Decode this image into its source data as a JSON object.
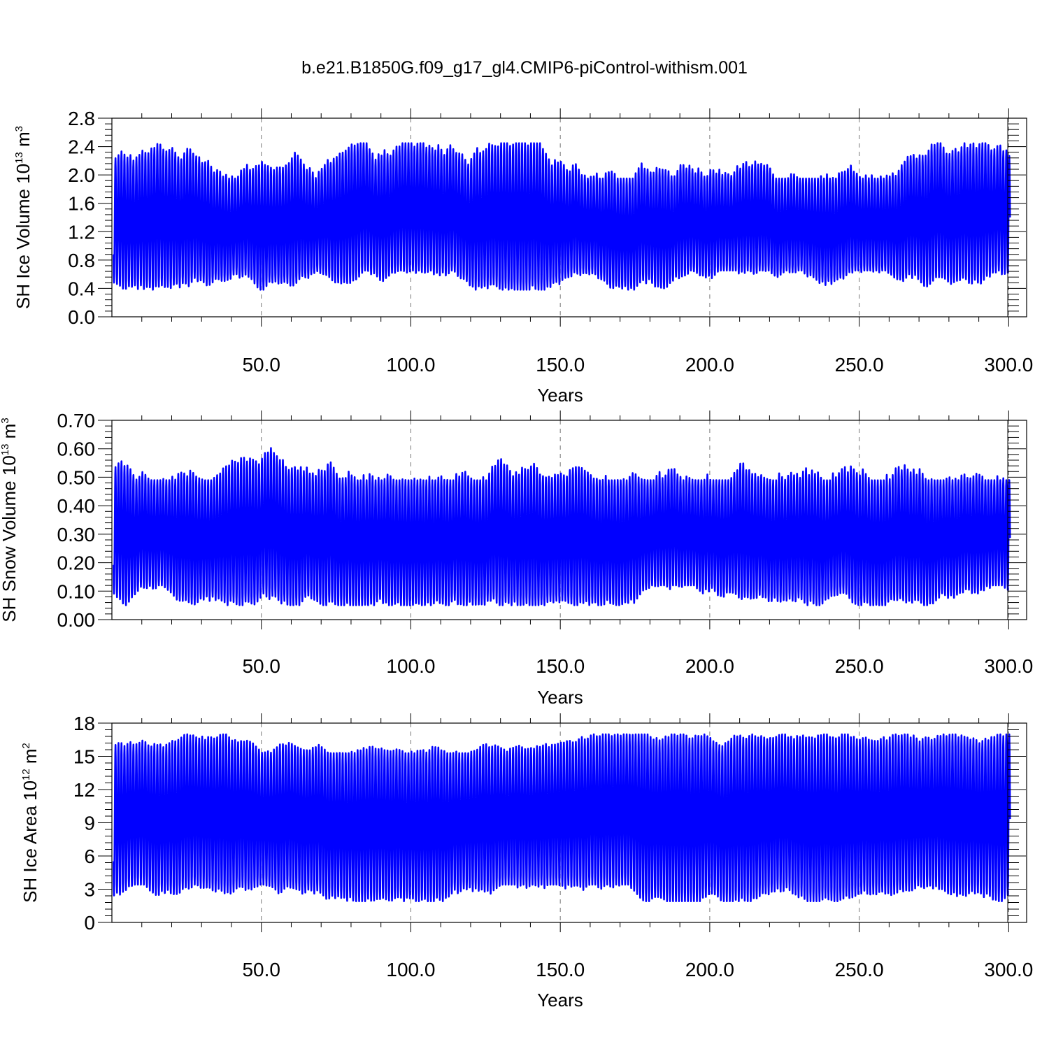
{
  "figure": {
    "title": "b.e21.B1850G.f09_g17_gl4.CMIP6-piControl-withism.001",
    "line_color": "#0000ff",
    "grid_color": "#777777"
  },
  "chart_data": [
    {
      "type": "line",
      "name": "sh-ice-volume",
      "title": "",
      "ylabel": {
        "base": "SH Ice Volume 10",
        "exp": "13",
        "mid": " m",
        "unit_exp": "3"
      },
      "xlabel": "Years",
      "xlim": [
        0,
        306
      ],
      "ylim": [
        0.0,
        2.8
      ],
      "xticks": [
        50,
        100,
        150,
        200,
        250,
        300
      ],
      "xtick_labels": [
        "50.0",
        "100.0",
        "150.0",
        "200.0",
        "250.0",
        "300.0"
      ],
      "yticks": [
        0.0,
        0.4,
        0.8,
        1.2,
        1.6,
        2.0,
        2.4,
        2.8
      ],
      "ytick_labels": [
        "0.0",
        "0.4",
        "0.8",
        "1.2",
        "1.6",
        "2.0",
        "2.4",
        "2.8"
      ],
      "grid": "vertical-dashed",
      "series_summary": {
        "years": [
          1,
          300
        ],
        "period": "annual cycle (monthly)",
        "annual_max_range": [
          1.95,
          2.45
        ],
        "annual_min_range": [
          0.38,
          0.65
        ]
      }
    },
    {
      "type": "line",
      "name": "sh-snow-volume",
      "title": "",
      "ylabel": {
        "base": "SH Snow Volume 10",
        "exp": "13",
        "mid": " m",
        "unit_exp": "3"
      },
      "xlabel": "Years",
      "xlim": [
        0,
        306
      ],
      "ylim": [
        0.0,
        0.7
      ],
      "xticks": [
        50,
        100,
        150,
        200,
        250,
        300
      ],
      "xtick_labels": [
        "50.0",
        "100.0",
        "150.0",
        "200.0",
        "250.0",
        "300.0"
      ],
      "yticks": [
        0.0,
        0.1,
        0.2,
        0.3,
        0.4,
        0.5,
        0.6,
        0.7
      ],
      "ytick_labels": [
        "0.00",
        "0.10",
        "0.20",
        "0.30",
        "0.40",
        "0.50",
        "0.60",
        "0.70"
      ],
      "grid": "vertical-dashed",
      "series_summary": {
        "years": [
          1,
          300
        ],
        "period": "annual cycle (monthly)",
        "annual_max_range": [
          0.49,
          0.63
        ],
        "annual_min_range": [
          0.05,
          0.12
        ]
      }
    },
    {
      "type": "line",
      "name": "sh-ice-area",
      "title": "",
      "ylabel": {
        "base": "SH Ice Area 10",
        "exp": "12",
        "mid": " m",
        "unit_exp": "2"
      },
      "xlabel": "Years",
      "xlim": [
        0,
        306
      ],
      "ylim": [
        0,
        18
      ],
      "xticks": [
        50,
        100,
        150,
        200,
        250,
        300
      ],
      "xtick_labels": [
        "50.0",
        "100.0",
        "150.0",
        "200.0",
        "250.0",
        "300.0"
      ],
      "yticks": [
        0,
        3,
        6,
        9,
        12,
        15,
        18
      ],
      "ytick_labels": [
        "0",
        "3",
        "6",
        "9",
        "12",
        "15",
        "18"
      ],
      "grid": "vertical-dashed",
      "series_summary": {
        "years": [
          1,
          300
        ],
        "period": "annual cycle (monthly)",
        "annual_max_range": [
          15.3,
          17.0
        ],
        "annual_min_range": [
          1.9,
          3.4
        ]
      }
    }
  ]
}
